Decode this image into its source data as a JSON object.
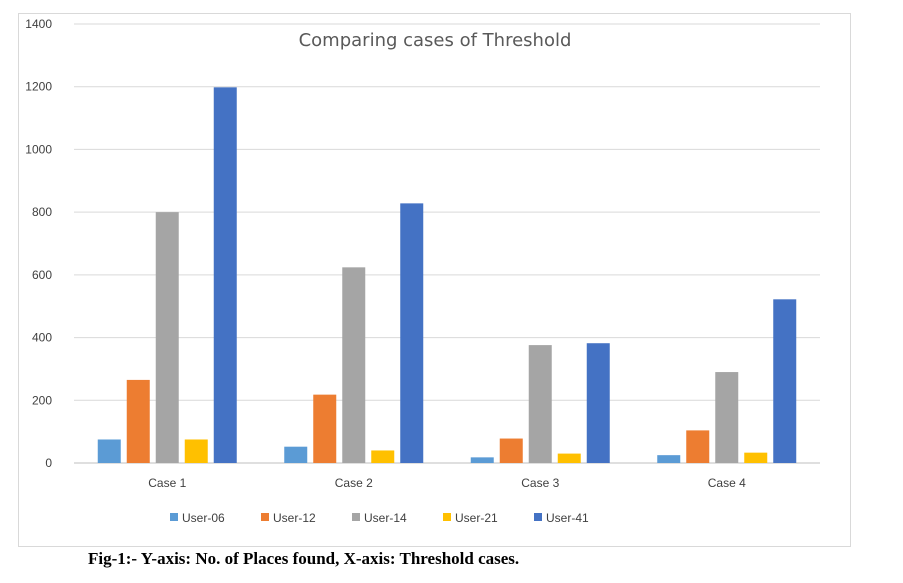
{
  "chart_data": {
    "type": "bar",
    "title": "Comparing cases of Threshold",
    "xlabel": "",
    "ylabel": "",
    "categories": [
      "Case 1",
      "Case 2",
      "Case 3",
      "Case 4"
    ],
    "ylim": [
      0,
      1400
    ],
    "yticks": [
      0,
      200,
      400,
      600,
      800,
      1000,
      1200,
      1400
    ],
    "grid": true,
    "legend_position": "bottom",
    "series": [
      {
        "name": "User-06",
        "color": "#5b9bd5",
        "values": [
          75,
          52,
          18,
          25
        ]
      },
      {
        "name": "User-12",
        "color": "#ed7d31",
        "values": [
          265,
          218,
          78,
          104
        ]
      },
      {
        "name": "User-14",
        "color": "#a5a5a5",
        "values": [
          800,
          624,
          376,
          290
        ]
      },
      {
        "name": "User-21",
        "color": "#ffc000",
        "values": [
          75,
          40,
          30,
          33
        ]
      },
      {
        "name": "User-41",
        "color": "#4472c4",
        "values": [
          1198,
          828,
          382,
          522
        ]
      }
    ]
  },
  "caption": "Fig-1:- Y-axis: No. of Places found, X-axis: Threshold cases."
}
